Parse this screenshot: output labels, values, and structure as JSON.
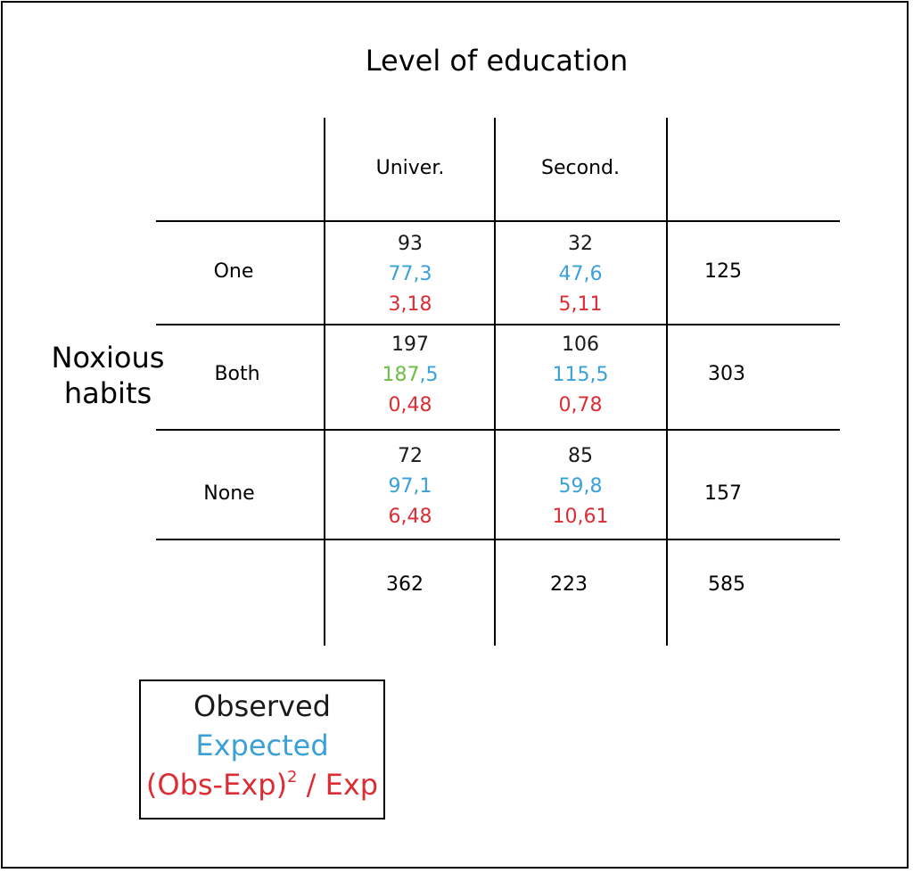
{
  "title": "Level of education",
  "row_variable": "Noxious habits",
  "columns": [
    "Univer.",
    "Second."
  ],
  "rows": [
    {
      "label": "One",
      "cells": [
        {
          "observed": "93",
          "expected_int": "77",
          "expected_dec": ",3",
          "chi": "3,18"
        },
        {
          "observed": "32",
          "expected_int": "47",
          "expected_dec": ",6",
          "chi": "5,11"
        }
      ],
      "total": "125"
    },
    {
      "label": "Both",
      "cells": [
        {
          "observed": "197",
          "expected_int": "187",
          "expected_dec": ",5",
          "chi": "0,48"
        },
        {
          "observed": "106",
          "expected_int": "115",
          "expected_dec": ",5",
          "chi": "0,78"
        }
      ],
      "total": "303"
    },
    {
      "label": "None",
      "cells": [
        {
          "observed": "72",
          "expected_int": "97",
          "expected_dec": ",1",
          "chi": "6,48"
        },
        {
          "observed": "85",
          "expected_int": "59",
          "expected_dec": ",8",
          "chi": "10,61"
        }
      ],
      "total": "157"
    }
  ],
  "column_totals": [
    "362",
    "223"
  ],
  "grand_total": "585",
  "legend": {
    "observed": "Observed",
    "expected": "Expected",
    "chi_main": "(Obs-Exp)",
    "chi_sup": "2",
    "chi_tail": " / Exp"
  },
  "colors": {
    "observed": "#1a1a1a",
    "expected": "#3aa0d8",
    "chi": "#dc2d34",
    "highlight": "#6dbe45"
  }
}
